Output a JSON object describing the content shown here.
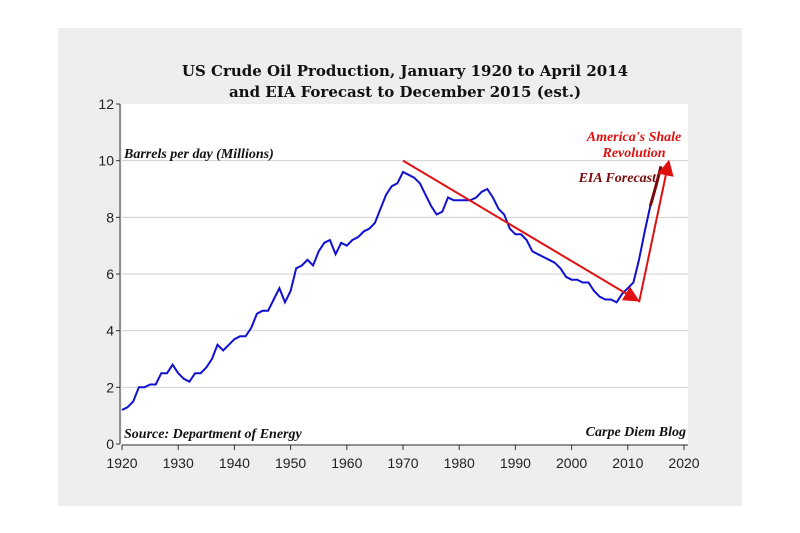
{
  "chart_data": {
    "type": "line",
    "title": [
      "US Crude Oil Production, January 1920 to April 2014",
      "and EIA Forecast to December 2015 (est.)"
    ],
    "ylabel": "Barrels per day (Millions)",
    "source": "Source: Department of Energy",
    "credit": "Carpe Diem Blog",
    "xlim": [
      1920,
      2020
    ],
    "ylim": [
      0,
      12
    ],
    "xticks": [
      1920,
      1930,
      1940,
      1950,
      1960,
      1970,
      1980,
      1990,
      2000,
      2010,
      2020
    ],
    "yticks": [
      0,
      2,
      4,
      6,
      8,
      10,
      12
    ],
    "grid": "horizontal",
    "series": [
      {
        "name": "US crude oil production",
        "color": "#1010d0",
        "x": [
          1920,
          1921,
          1922,
          1923,
          1924,
          1925,
          1926,
          1927,
          1928,
          1929,
          1930,
          1931,
          1932,
          1933,
          1934,
          1935,
          1936,
          1937,
          1938,
          1939,
          1940,
          1941,
          1942,
          1943,
          1944,
          1945,
          1946,
          1947,
          1948,
          1949,
          1950,
          1951,
          1952,
          1953,
          1954,
          1955,
          1956,
          1957,
          1958,
          1959,
          1960,
          1961,
          1962,
          1963,
          1964,
          1965,
          1966,
          1967,
          1968,
          1969,
          1970,
          1971,
          1972,
          1973,
          1974,
          1975,
          1976,
          1977,
          1978,
          1979,
          1980,
          1981,
          1982,
          1983,
          1984,
          1985,
          1986,
          1987,
          1988,
          1989,
          1990,
          1991,
          1992,
          1993,
          1994,
          1995,
          1996,
          1997,
          1998,
          1999,
          2000,
          2001,
          2002,
          2003,
          2004,
          2005,
          2006,
          2007,
          2008,
          2009,
          2010,
          2011,
          2012,
          2013,
          2014
        ],
        "y": [
          1.2,
          1.3,
          1.5,
          2.0,
          2.0,
          2.1,
          2.1,
          2.5,
          2.5,
          2.8,
          2.5,
          2.3,
          2.2,
          2.5,
          2.5,
          2.7,
          3.0,
          3.5,
          3.3,
          3.5,
          3.7,
          3.8,
          3.8,
          4.1,
          4.6,
          4.7,
          4.7,
          5.1,
          5.5,
          5.0,
          5.4,
          6.2,
          6.3,
          6.5,
          6.3,
          6.8,
          7.1,
          7.2,
          6.7,
          7.1,
          7.0,
          7.2,
          7.3,
          7.5,
          7.6,
          7.8,
          8.3,
          8.8,
          9.1,
          9.2,
          9.6,
          9.5,
          9.4,
          9.2,
          8.8,
          8.4,
          8.1,
          8.2,
          8.7,
          8.6,
          8.6,
          8.6,
          8.6,
          8.7,
          8.9,
          9.0,
          8.7,
          8.3,
          8.1,
          7.6,
          7.4,
          7.4,
          7.2,
          6.8,
          6.7,
          6.6,
          6.5,
          6.4,
          6.2,
          5.9,
          5.8,
          5.8,
          5.7,
          5.7,
          5.4,
          5.2,
          5.1,
          5.1,
          5.0,
          5.3,
          5.5,
          5.7,
          6.5,
          7.5,
          8.4
        ]
      },
      {
        "name": "EIA Forecast",
        "label": "EIA Forecast",
        "color": "#7a0a0a",
        "x": [
          2014,
          2015,
          2015.9
        ],
        "y": [
          8.4,
          9.1,
          9.8
        ]
      }
    ],
    "annotations": [
      {
        "text": "America's Shale",
        "color": "#e01010"
      },
      {
        "text": "Revolution",
        "color": "#e01010"
      }
    ],
    "arrows": [
      {
        "from": [
          1970,
          10.0
        ],
        "to": [
          2011.5,
          5.1
        ],
        "color": "#e01010"
      },
      {
        "from": [
          2012,
          5.0
        ],
        "to": [
          2017.2,
          9.9
        ],
        "color": "#e01010"
      }
    ]
  }
}
